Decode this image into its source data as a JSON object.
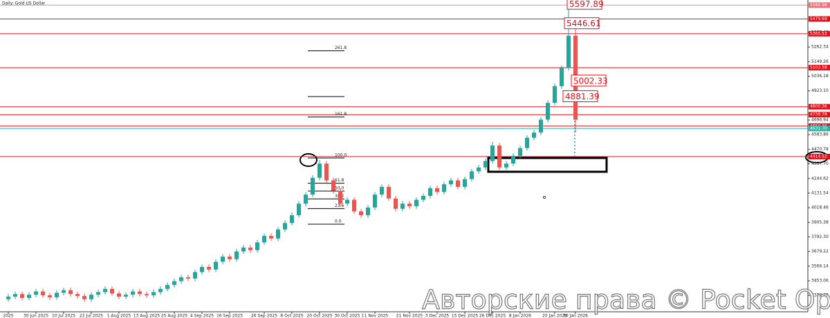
{
  "chart_data": {
    "type": "candlestick",
    "title": "Daily: Gold US Dollar",
    "watermark": "Авторские права © Pocket Option",
    "ylim": [
      3212.7,
      5626.4
    ],
    "yticks": [
      3339.98,
      3453.06,
      3566.14,
      3679.22,
      {
        "value": 3792.3,
        "label": "3792.30"
      },
      3905.38,
      4018.46,
      4131.54,
      4244.62,
      {
        "value": 4357.7,
        "label": "4357.70"
      },
      4470.78,
      4583.86,
      4696.94,
      {
        "value": 4923.1,
        "label": "4923.10"
      },
      5036.18,
      5149.26,
      5262.34,
      5375.42
    ],
    "levels": [
      5586.96,
      5479.69,
      5365.53,
      5102.58,
      4800.36,
      4738.78,
      4650.36,
      4414.52
    ],
    "support": {
      "value": 4631.7,
      "label": "4631.70"
    },
    "price_boxes": [
      5597.89,
      5446.61,
      5002.33,
      4881.39
    ],
    "fib_levels": [
      261.8,
      161.8,
      {
        "value": 100,
        "label": "100.0"
      },
      61.8,
      {
        "value": 50,
        "label": "50.0"
      },
      38.2,
      23.6,
      {
        "value": 0,
        "label": "0.0"
      }
    ],
    "up_color": "#26a69a",
    "down_color": "#ef5350",
    "level_color": "#e3101a",
    "support_color": "#2bb3a8",
    "categories": [
      "2025",
      null,
      null,
      null,
      "30 Jun 2025",
      null,
      null,
      null,
      "10 Jul 2025",
      null,
      null,
      null,
      "22 Jul 2025",
      null,
      null,
      null,
      "1 Aug 2025",
      null,
      null,
      null,
      "13 Aug 2025",
      null,
      null,
      null,
      "25 Aug 2025",
      null,
      null,
      null,
      "4 Sep 2025",
      null,
      null,
      null,
      "16 Sep 2025",
      null,
      null,
      null,
      null,
      "26 Sep 2025",
      null,
      null,
      null,
      "8 Oct 2025",
      null,
      null,
      null,
      "20 Oct 2025",
      null,
      null,
      null,
      "30 Oct 2025",
      null,
      null,
      null,
      "11 Nov 2025",
      null,
      null,
      null,
      null,
      "21 Nov 2025",
      null,
      null,
      null,
      "3 Dec 2025",
      null,
      null,
      null,
      "15 Dec 2025",
      null,
      null,
      null,
      "26 Dec 2025",
      null,
      null,
      null,
      "8 Jan 2026",
      null,
      null,
      null,
      null,
      "20 Jan 2026",
      null,
      null,
      "30 Jan 2026"
    ],
    "candles": [
      [
        3310,
        3350,
        3290,
        3330
      ],
      [
        3330,
        3370,
        3310,
        3350
      ],
      [
        3350,
        3370,
        3300,
        3320
      ],
      [
        3320,
        3365,
        3300,
        3345
      ],
      [
        3345,
        3390,
        3325,
        3370
      ],
      [
        3370,
        3390,
        3320,
        3340
      ],
      [
        3340,
        3360,
        3305,
        3325
      ],
      [
        3325,
        3380,
        3305,
        3360
      ],
      [
        3360,
        3400,
        3340,
        3380
      ],
      [
        3380,
        3400,
        3330,
        3350
      ],
      [
        3350,
        3370,
        3315,
        3335
      ],
      [
        3335,
        3355,
        3290,
        3310
      ],
      [
        3310,
        3365,
        3290,
        3345
      ],
      [
        3345,
        3385,
        3325,
        3365
      ],
      [
        3365,
        3410,
        3345,
        3390
      ],
      [
        3390,
        3410,
        3335,
        3355
      ],
      [
        3355,
        3375,
        3310,
        3330
      ],
      [
        3330,
        3365,
        3310,
        3345
      ],
      [
        3345,
        3390,
        3325,
        3370
      ],
      [
        3370,
        3390,
        3330,
        3350
      ],
      [
        3350,
        3370,
        3320,
        3340
      ],
      [
        3340,
        3385,
        3320,
        3365
      ],
      [
        3365,
        3410,
        3345,
        3390
      ],
      [
        3390,
        3440,
        3370,
        3420
      ],
      [
        3420,
        3470,
        3400,
        3450
      ],
      [
        3450,
        3500,
        3430,
        3480
      ],
      [
        3480,
        3500,
        3450,
        3470
      ],
      [
        3470,
        3540,
        3450,
        3520
      ],
      [
        3520,
        3580,
        3500,
        3560
      ],
      [
        3560,
        3580,
        3520,
        3540
      ],
      [
        3540,
        3620,
        3520,
        3600
      ],
      [
        3600,
        3660,
        3580,
        3640
      ],
      [
        3640,
        3660,
        3600,
        3620
      ],
      [
        3620,
        3700,
        3600,
        3680
      ],
      [
        3680,
        3730,
        3660,
        3710
      ],
      [
        3710,
        3730,
        3670,
        3690
      ],
      [
        3690,
        3770,
        3670,
        3750
      ],
      [
        3750,
        3820,
        3730,
        3800
      ],
      [
        3800,
        3820,
        3760,
        3780
      ],
      [
        3780,
        3870,
        3760,
        3850
      ],
      [
        3850,
        3920,
        3830,
        3900
      ],
      [
        3900,
        3980,
        3880,
        3960
      ],
      [
        3960,
        4070,
        3940,
        4050
      ],
      [
        4050,
        4140,
        4030,
        4120
      ],
      [
        4120,
        4270,
        4100,
        4250
      ],
      [
        4250,
        4388,
        4230,
        4360
      ],
      [
        4360,
        4380,
        4210,
        4230
      ],
      [
        4230,
        4250,
        4130,
        4150
      ],
      [
        4150,
        4170,
        4030,
        4050
      ],
      [
        4050,
        4100,
        4030,
        4080
      ],
      [
        4080,
        4100,
        3970,
        3990
      ],
      [
        3990,
        4010,
        3940,
        3960
      ],
      [
        3960,
        4040,
        3940,
        4020
      ],
      [
        4020,
        4140,
        4000,
        4120
      ],
      [
        4120,
        4200,
        4100,
        4180
      ],
      [
        4180,
        4200,
        4070,
        4090
      ],
      [
        4090,
        4110,
        3990,
        4010
      ],
      [
        4010,
        4070,
        3990,
        4050
      ],
      [
        4050,
        4070,
        4010,
        4030
      ],
      [
        4030,
        4100,
        4010,
        4080
      ],
      [
        4080,
        4130,
        4060,
        4110
      ],
      [
        4110,
        4190,
        4090,
        4170
      ],
      [
        4170,
        4190,
        4120,
        4140
      ],
      [
        4140,
        4220,
        4120,
        4200
      ],
      [
        4200,
        4250,
        4180,
        4230
      ],
      [
        4230,
        4250,
        4160,
        4180
      ],
      [
        4180,
        4260,
        4160,
        4240
      ],
      [
        4240,
        4320,
        4220,
        4300
      ],
      [
        4300,
        4350,
        4280,
        4330
      ],
      [
        4330,
        4400,
        4310,
        4380
      ],
      [
        4380,
        4530,
        4360,
        4500
      ],
      [
        4500,
        4520,
        4310,
        4330
      ],
      [
        4330,
        4380,
        4310,
        4360
      ],
      [
        4360,
        4440,
        4340,
        4420
      ],
      [
        4420,
        4500,
        4400,
        4480
      ],
      [
        4480,
        4580,
        4460,
        4560
      ],
      [
        4560,
        4620,
        4540,
        4600
      ],
      [
        4600,
        4720,
        4580,
        4700
      ],
      [
        4700,
        4850,
        4680,
        4830
      ],
      [
        4830,
        4980,
        4810,
        4960
      ],
      [
        4960,
        5120,
        4940,
        5100
      ],
      [
        5100,
        5597.89,
        5080,
        5350
      ],
      [
        5350,
        5440,
        4600,
        4700
      ]
    ]
  }
}
